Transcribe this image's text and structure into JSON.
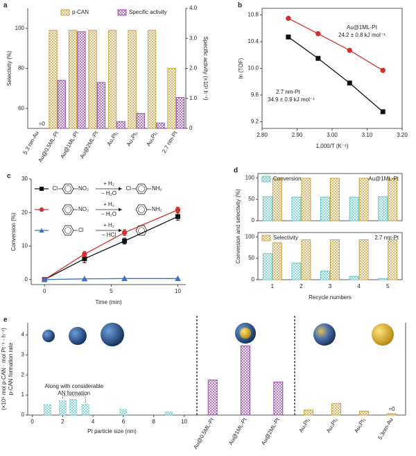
{
  "chart_data": [
    {
      "panel": "a",
      "type": "bar",
      "categories": [
        "5.3 nm-Au",
        "Au@0.5ML-Pt",
        "Au@1ML-Pt",
        "Au@2ML-Pt",
        "Au₁Pt₁",
        "Au₃Pt₁",
        "Au₅Pt₁",
        "2.7 nm-Pt"
      ],
      "series": [
        {
          "name": "p-CAN",
          "color": "#c8a035",
          "values": [
            null,
            99,
            99,
            99,
            99,
            99,
            99,
            80
          ]
        },
        {
          "name": "Specific activity",
          "color": "#8e44ad",
          "axis": "y2",
          "values": [
            0,
            1.6,
            3.22,
            1.53,
            0.23,
            0.5,
            0.18,
            1.03
          ],
          "value_labels": [
            "≈0",
            null,
            null,
            null,
            null,
            null,
            null,
            null
          ]
        }
      ],
      "ylabel": "Selectivity (%)",
      "y2label": "Specific activity (×10³ h⁻¹)",
      "ylim": [
        50,
        110
      ],
      "yticks": [
        60,
        80,
        100
      ],
      "y2lim": [
        0,
        4
      ],
      "y2ticks": [
        0,
        {
          "value": 1,
          "label": "1.0"
        },
        {
          "value": 2,
          "label": "2.0"
        },
        {
          "value": 3,
          "label": "3.0"
        },
        {
          "value": 4,
          "label": "4.0"
        }
      ]
    },
    {
      "panel": "b",
      "type": "line",
      "xlabel": "1,000/T (K⁻¹)",
      "ylabel": "ln (TOF)",
      "xlim": [
        2.8,
        3.2
      ],
      "xticks": [
        {
          "value": 2.8,
          "label": "2.80"
        },
        {
          "value": 2.9,
          "label": "2.90"
        },
        {
          "value": 3,
          "label": "3.00"
        },
        {
          "value": 3.1,
          "label": "3.10"
        },
        {
          "value": 3.2,
          "label": "3.20"
        }
      ],
      "ylim": [
        9.1,
        10.9
      ],
      "yticks": [
        9.2,
        9.6,
        {
          "value": 10,
          "label": "10.0"
        },
        10.4,
        10.8
      ],
      "series": [
        {
          "name": "Au@1ML-Pt",
          "annotation": "24.2 ± 0.8 kJ mol⁻¹",
          "color": "#d0312d",
          "marker": "circle",
          "x": [
            2.875,
            2.96,
            3.05,
            3.145
          ],
          "values": [
            10.75,
            10.52,
            10.27,
            9.97
          ]
        },
        {
          "name": "2.7 nm-Pt",
          "annotation": "34.9 ± 0.9 kJ mol⁻¹",
          "color": "#111111",
          "marker": "square",
          "x": [
            2.875,
            2.96,
            3.05,
            3.145
          ],
          "values": [
            10.47,
            10.15,
            9.78,
            9.35
          ]
        }
      ]
    },
    {
      "panel": "c",
      "type": "line",
      "xlabel": "Time (min)",
      "ylabel": "Conversion (%)",
      "xlim": [
        -1,
        10.6
      ],
      "xticks": [
        0,
        5,
        10
      ],
      "ylim": [
        -1.5,
        30
      ],
      "yticks": [
        0,
        10,
        20,
        30
      ],
      "series": [
        {
          "color": "#111111",
          "marker": "square",
          "x": [
            0,
            3,
            6,
            10
          ],
          "values": [
            0,
            6.2,
            11.5,
            18.8
          ],
          "errors": [
            0.4,
            1.2,
            0.9,
            1.1
          ]
        },
        {
          "color": "#d0312d",
          "marker": "circle",
          "x": [
            0,
            3,
            6,
            10
          ],
          "values": [
            0,
            7.6,
            14,
            20.8
          ],
          "errors": [
            0.3,
            0.8,
            0.9,
            0.8
          ]
        },
        {
          "color": "#3a6fc4",
          "marker": "triangle",
          "x": [
            0,
            3,
            6,
            10
          ],
          "values": [
            0,
            0.2,
            0.3,
            0.3
          ]
        }
      ],
      "scheme": [
        {
          "reactant": {
            "left": "Cl",
            "right": "NO₂"
          },
          "conditions": [
            "+ H₂",
            "− H₂O"
          ],
          "product": {
            "left": "Cl",
            "right": "NH₂"
          }
        },
        {
          "reactant": {
            "right": "NO₂"
          },
          "conditions": [
            "+ H₂",
            "− H₂O"
          ],
          "product": {
            "right": "NH₂"
          }
        },
        {
          "reactant": {
            "right": "Cl"
          },
          "conditions": [
            "+ H₂",
            "− HCl"
          ],
          "product": {}
        }
      ]
    },
    {
      "panel": "d",
      "type": "bar",
      "label": "Au@1ML-Pt",
      "ylabel": "Conversion and selectivity (%)",
      "ylim": [
        0,
        110
      ],
      "yticks": [
        0,
        50,
        100
      ],
      "series": [
        {
          "name": "Conversion",
          "color": "#5bc8c8",
          "values": [
            56,
            55,
            55,
            55,
            56
          ]
        },
        {
          "color": "#c8a035",
          "values": [
            99,
            99,
            99,
            99,
            99
          ]
        }
      ]
    },
    {
      "type": "bar",
      "label": "2.7 nm-Pt",
      "xlabel": "Recycle numbers",
      "categories": [
        "1",
        "2",
        "3",
        "4",
        "5"
      ],
      "ylim": [
        0,
        110
      ],
      "yticks": [
        0,
        50,
        100
      ],
      "series": [
        {
          "color": "#5bc8c8",
          "values": [
            61,
            39,
            20,
            8,
            3
          ]
        },
        {
          "name": "Selectivity",
          "color": "#c8a035",
          "values": [
            86,
            93,
            93,
            93,
            93
          ]
        }
      ]
    },
    {
      "panel": "e",
      "type": "bar",
      "xlabel": "Pt particle size (nm)",
      "ylabel": [
        "p-CAN formation rate",
        "(×10⁵ mol p-CAN · mol Pt⁻¹ · h⁻¹)"
      ],
      "annotation": [
        "Along with considerable",
        "AN formation"
      ],
      "xlim": [
        -0.3,
        10.8
      ],
      "xticks": [
        0,
        2,
        4,
        6,
        8,
        10
      ],
      "ylim": [
        0,
        4.6
      ],
      "yticks": [
        0,
        1,
        2,
        3,
        4
      ],
      "x": [
        1,
        2,
        2.7,
        3.5,
        6,
        9
      ],
      "values": [
        0.52,
        0.72,
        0.78,
        0.52,
        0.28,
        0.17
      ],
      "color": "#5bc8c8",
      "line_style": "dashed"
    },
    {
      "type": "bar",
      "categories": [
        "Au@0.5ML-Pt",
        "Au@1ML-Pt",
        "Au@2ML-Pt"
      ],
      "values": [
        1.75,
        3.45,
        1.65
      ],
      "color": "#8e44ad",
      "ylim": [
        0,
        4.6
      ]
    },
    {
      "type": "bar",
      "categories": [
        "Au₁Pt₁",
        "Au₃Pt₁",
        "Au₅Pt₁",
        "5.3nm-Au"
      ],
      "values": [
        0.25,
        0.58,
        0.2,
        0.07
      ],
      "value_labels": [
        null,
        null,
        null,
        "≈0"
      ],
      "color": "#c8a035",
      "ylim": [
        0,
        4.6
      ]
    }
  ]
}
